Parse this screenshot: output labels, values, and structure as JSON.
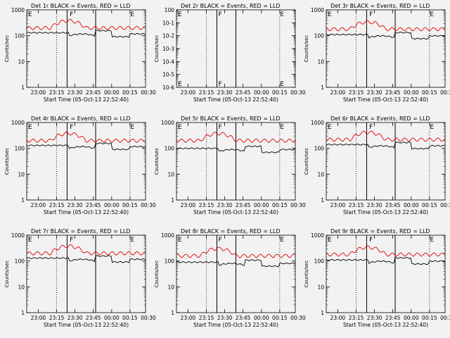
{
  "page": {
    "background": "#f2f2f2"
  },
  "colors": {
    "events": "#000000",
    "lld": "#e00000",
    "axes": "#000000"
  },
  "chart_data": [
    {
      "type": "line",
      "title": "Det 1r BLACK = Events, RED = LLD",
      "ylabel": "Counts/sec",
      "xlabel": "Start Time (05-Oct-13 22:52:40)",
      "yscale": "log",
      "ylim": [
        1,
        1000
      ],
      "ytick_labels": [
        "1",
        "10",
        "100",
        "1000"
      ],
      "xlim": [
        0,
        100
      ],
      "x_ticks": [
        {
          "x": 9.7,
          "label": "23:00"
        },
        {
          "x": 25.2,
          "label": "23:15"
        },
        {
          "x": 40.6,
          "label": "23:30"
        },
        {
          "x": 56.0,
          "label": "23:45"
        },
        {
          "x": 71.5,
          "label": "00:00"
        },
        {
          "x": 86.9,
          "label": "00:15"
        },
        {
          "x": 102.3,
          "label": "00:30"
        }
      ],
      "dotted_vlines": [
        25.2,
        86.9
      ],
      "solid_vlines": [
        34,
        58
      ],
      "markers": [
        {
          "x": 0,
          "label": "E"
        },
        {
          "x": 35,
          "label": "F"
        },
        {
          "x": 86,
          "label": "E"
        }
      ],
      "series": [
        {
          "color": "#000000",
          "values": []
        },
        {
          "color": "#e00000",
          "values": []
        }
      ]
    },
    {
      "type": "line",
      "title": "Det 2r BLACK = Events, RED = LLD",
      "ylabel": "Counts/sec",
      "xlabel": "Start Time (05-Oct-13 22:52:40)",
      "yscale": "log",
      "ylim": [
        1e-06,
        1
      ],
      "ytick_labels": [
        "10-6",
        "10-5",
        "10-4",
        "10-3",
        "10-2",
        "10-1",
        "100"
      ],
      "xlim": [
        0,
        100
      ],
      "x_ticks": [
        {
          "x": 9.7,
          "label": "23:00"
        },
        {
          "x": 25.2,
          "label": "23:15"
        },
        {
          "x": 40.6,
          "label": "23:30"
        },
        {
          "x": 56.0,
          "label": "23:45"
        },
        {
          "x": 71.5,
          "label": "00:00"
        },
        {
          "x": 86.9,
          "label": "00:15"
        },
        {
          "x": 102.3,
          "label": "00:30"
        }
      ],
      "dotted_vlines": [
        25.2,
        86.9
      ],
      "solid_vlines": [
        34,
        50
      ],
      "markers": [
        {
          "x": 0,
          "label": "E"
        },
        {
          "x": 34,
          "label": "F"
        },
        {
          "x": 86,
          "label": "E"
        }
      ],
      "series": []
    },
    {
      "type": "line",
      "title": "Det 3r BLACK = Events, RED = LLD",
      "ylabel": "Counts/sec",
      "xlabel": "Start Time (05-Oct-13 22:52:40)",
      "yscale": "log",
      "ylim": [
        1,
        1000
      ],
      "ytick_labels": [
        "1",
        "10",
        "100",
        "1000"
      ],
      "xlim": [
        0,
        100
      ],
      "x_ticks": [
        {
          "x": 9.7,
          "label": "23:00"
        },
        {
          "x": 25.2,
          "label": "23:15"
        },
        {
          "x": 40.6,
          "label": "23:30"
        },
        {
          "x": 56.0,
          "label": "23:45"
        },
        {
          "x": 71.5,
          "label": "00:00"
        },
        {
          "x": 86.9,
          "label": "00:15"
        },
        {
          "x": 102.3,
          "label": "00:30"
        }
      ],
      "dotted_vlines": [
        25.2,
        86.9
      ],
      "solid_vlines": [
        34,
        58
      ],
      "markers": [
        {
          "x": 0,
          "label": "E"
        },
        {
          "x": 35,
          "label": "F"
        },
        {
          "x": 86,
          "label": "E"
        }
      ],
      "series": [
        {
          "color": "#000000",
          "values": []
        },
        {
          "color": "#e00000",
          "values": []
        }
      ]
    },
    {
      "type": "line",
      "title": "Det 4r BLACK = Events, RED = LLD",
      "ylabel": "Counts/sec",
      "xlabel": "Start Time (05-Oct-13 22:52:40)",
      "yscale": "log",
      "ylim": [
        1,
        1000
      ],
      "ytick_labels": [
        "1",
        "10",
        "100",
        "1000"
      ],
      "xlim": [
        0,
        100
      ],
      "x_ticks": [
        {
          "x": 9.7,
          "label": "23:00"
        },
        {
          "x": 25.2,
          "label": "23:15"
        },
        {
          "x": 40.6,
          "label": "23:30"
        },
        {
          "x": 56.0,
          "label": "23:45"
        },
        {
          "x": 71.5,
          "label": "00:00"
        },
        {
          "x": 86.9,
          "label": "00:15"
        },
        {
          "x": 102.3,
          "label": "00:30"
        }
      ],
      "dotted_vlines": [
        25.2,
        86.9
      ],
      "solid_vlines": [
        34,
        58
      ],
      "markers": [
        {
          "x": 0,
          "label": "E"
        },
        {
          "x": 35,
          "label": "F"
        },
        {
          "x": 86,
          "label": "E"
        }
      ],
      "series": [
        {
          "color": "#000000",
          "values": []
        },
        {
          "color": "#e00000",
          "values": []
        }
      ]
    },
    {
      "type": "line",
      "title": "Det 5r BLACK = Events, RED = LLD",
      "ylabel": "Counts/sec",
      "xlabel": "Start Time (05-Oct-13 22:52:40)",
      "yscale": "log",
      "ylim": [
        1,
        1000
      ],
      "ytick_labels": [
        "1",
        "10",
        "100",
        "1000"
      ],
      "xlim": [
        0,
        100
      ],
      "x_ticks": [
        {
          "x": 9.7,
          "label": "23:00"
        },
        {
          "x": 25.2,
          "label": "23:15"
        },
        {
          "x": 40.6,
          "label": "23:30"
        },
        {
          "x": 56.0,
          "label": "23:45"
        },
        {
          "x": 71.5,
          "label": "00:00"
        },
        {
          "x": 86.9,
          "label": "00:15"
        },
        {
          "x": 102.3,
          "label": "00:30"
        }
      ],
      "dotted_vlines": [
        25.2,
        86.9
      ],
      "solid_vlines": [
        34,
        50
      ],
      "markers": [
        {
          "x": 0,
          "label": "E"
        },
        {
          "x": 34,
          "label": "F"
        },
        {
          "x": 86,
          "label": "E"
        }
      ],
      "series": [
        {
          "color": "#000000",
          "values": []
        },
        {
          "color": "#e00000",
          "values": []
        }
      ]
    },
    {
      "type": "line",
      "title": "Det 6r BLACK = Events, RED = LLD",
      "ylabel": "Counts/sec",
      "xlabel": "Start Time (05-Oct-13 22:52:40)",
      "yscale": "log",
      "ylim": [
        1,
        1000
      ],
      "ytick_labels": [
        "1",
        "10",
        "100",
        "1000"
      ],
      "xlim": [
        0,
        100
      ],
      "x_ticks": [
        {
          "x": 9.7,
          "label": "23:00"
        },
        {
          "x": 25.2,
          "label": "23:15"
        },
        {
          "x": 40.6,
          "label": "23:30"
        },
        {
          "x": 56.0,
          "label": "23:45"
        },
        {
          "x": 71.5,
          "label": "00:00"
        },
        {
          "x": 86.9,
          "label": "00:15"
        },
        {
          "x": 102.3,
          "label": "00:30"
        }
      ],
      "dotted_vlines": [
        25.2,
        86.9
      ],
      "solid_vlines": [
        34,
        58
      ],
      "markers": [
        {
          "x": 0,
          "label": "E"
        },
        {
          "x": 35,
          "label": "F"
        },
        {
          "x": 86,
          "label": "E"
        }
      ],
      "series": [
        {
          "color": "#000000",
          "values": []
        },
        {
          "color": "#e00000",
          "values": []
        }
      ]
    },
    {
      "type": "line",
      "title": "Det 7r BLACK = Events, RED = LLD",
      "ylabel": "Counts/sec",
      "xlabel": "Start Time (05-Oct-13 22:52:40)",
      "yscale": "log",
      "ylim": [
        1,
        1000
      ],
      "ytick_labels": [
        "1",
        "10",
        "100",
        "1000"
      ],
      "xlim": [
        0,
        100
      ],
      "x_ticks": [
        {
          "x": 9.7,
          "label": "23:00"
        },
        {
          "x": 25.2,
          "label": "23:15"
        },
        {
          "x": 40.6,
          "label": "23:30"
        },
        {
          "x": 56.0,
          "label": "23:45"
        },
        {
          "x": 71.5,
          "label": "00:00"
        },
        {
          "x": 86.9,
          "label": "00:15"
        },
        {
          "x": 102.3,
          "label": "00:30"
        }
      ],
      "dotted_vlines": [
        25.2,
        86.9
      ],
      "solid_vlines": [
        34,
        58
      ],
      "markers": [
        {
          "x": 0,
          "label": "E"
        },
        {
          "x": 35,
          "label": "F"
        },
        {
          "x": 86,
          "label": "E"
        }
      ],
      "series": [
        {
          "color": "#000000",
          "values": []
        },
        {
          "color": "#e00000",
          "values": []
        }
      ]
    },
    {
      "type": "line",
      "title": "Det 8r BLACK = Events, RED = LLD",
      "ylabel": "Counts/sec",
      "xlabel": "Start Time (05-Oct-13 22:52:40)",
      "yscale": "log",
      "ylim": [
        1,
        1000
      ],
      "ytick_labels": [
        "1",
        "10",
        "100",
        "1000"
      ],
      "xlim": [
        0,
        100
      ],
      "x_ticks": [
        {
          "x": 9.7,
          "label": "23:00"
        },
        {
          "x": 25.2,
          "label": "23:15"
        },
        {
          "x": 40.6,
          "label": "23:30"
        },
        {
          "x": 56.0,
          "label": "23:45"
        },
        {
          "x": 71.5,
          "label": "00:00"
        },
        {
          "x": 86.9,
          "label": "00:15"
        },
        {
          "x": 102.3,
          "label": "00:30"
        }
      ],
      "dotted_vlines": [
        25.2,
        86.9
      ],
      "solid_vlines": [
        34,
        50
      ],
      "markers": [
        {
          "x": 0,
          "label": "E"
        },
        {
          "x": 34,
          "label": "F"
        },
        {
          "x": 86,
          "label": "E"
        }
      ],
      "series": [
        {
          "color": "#000000",
          "values": []
        },
        {
          "color": "#e00000",
          "values": []
        }
      ]
    },
    {
      "type": "line",
      "title": "Det 9r BLACK = Events, RED = LLD",
      "ylabel": "Counts/sec",
      "xlabel": "Start Time (05-Oct-13 22:52:40)",
      "yscale": "log",
      "ylim": [
        1,
        1000
      ],
      "ytick_labels": [
        "1",
        "10",
        "100",
        "1000"
      ],
      "xlim": [
        0,
        100
      ],
      "x_ticks": [
        {
          "x": 9.7,
          "label": "23:00"
        },
        {
          "x": 25.2,
          "label": "23:15"
        },
        {
          "x": 40.6,
          "label": "23:30"
        },
        {
          "x": 56.0,
          "label": "23:45"
        },
        {
          "x": 71.5,
          "label": "00:00"
        },
        {
          "x": 86.9,
          "label": "00:15"
        },
        {
          "x": 102.3,
          "label": "00:30"
        }
      ],
      "dotted_vlines": [
        25.2,
        86.9
      ],
      "solid_vlines": [
        34,
        58
      ],
      "markers": [
        {
          "x": 0,
          "label": "E"
        },
        {
          "x": 35,
          "label": "F"
        },
        {
          "x": 86,
          "label": "E"
        }
      ],
      "series": [
        {
          "color": "#000000",
          "values": []
        },
        {
          "color": "#e00000",
          "values": []
        }
      ]
    }
  ]
}
